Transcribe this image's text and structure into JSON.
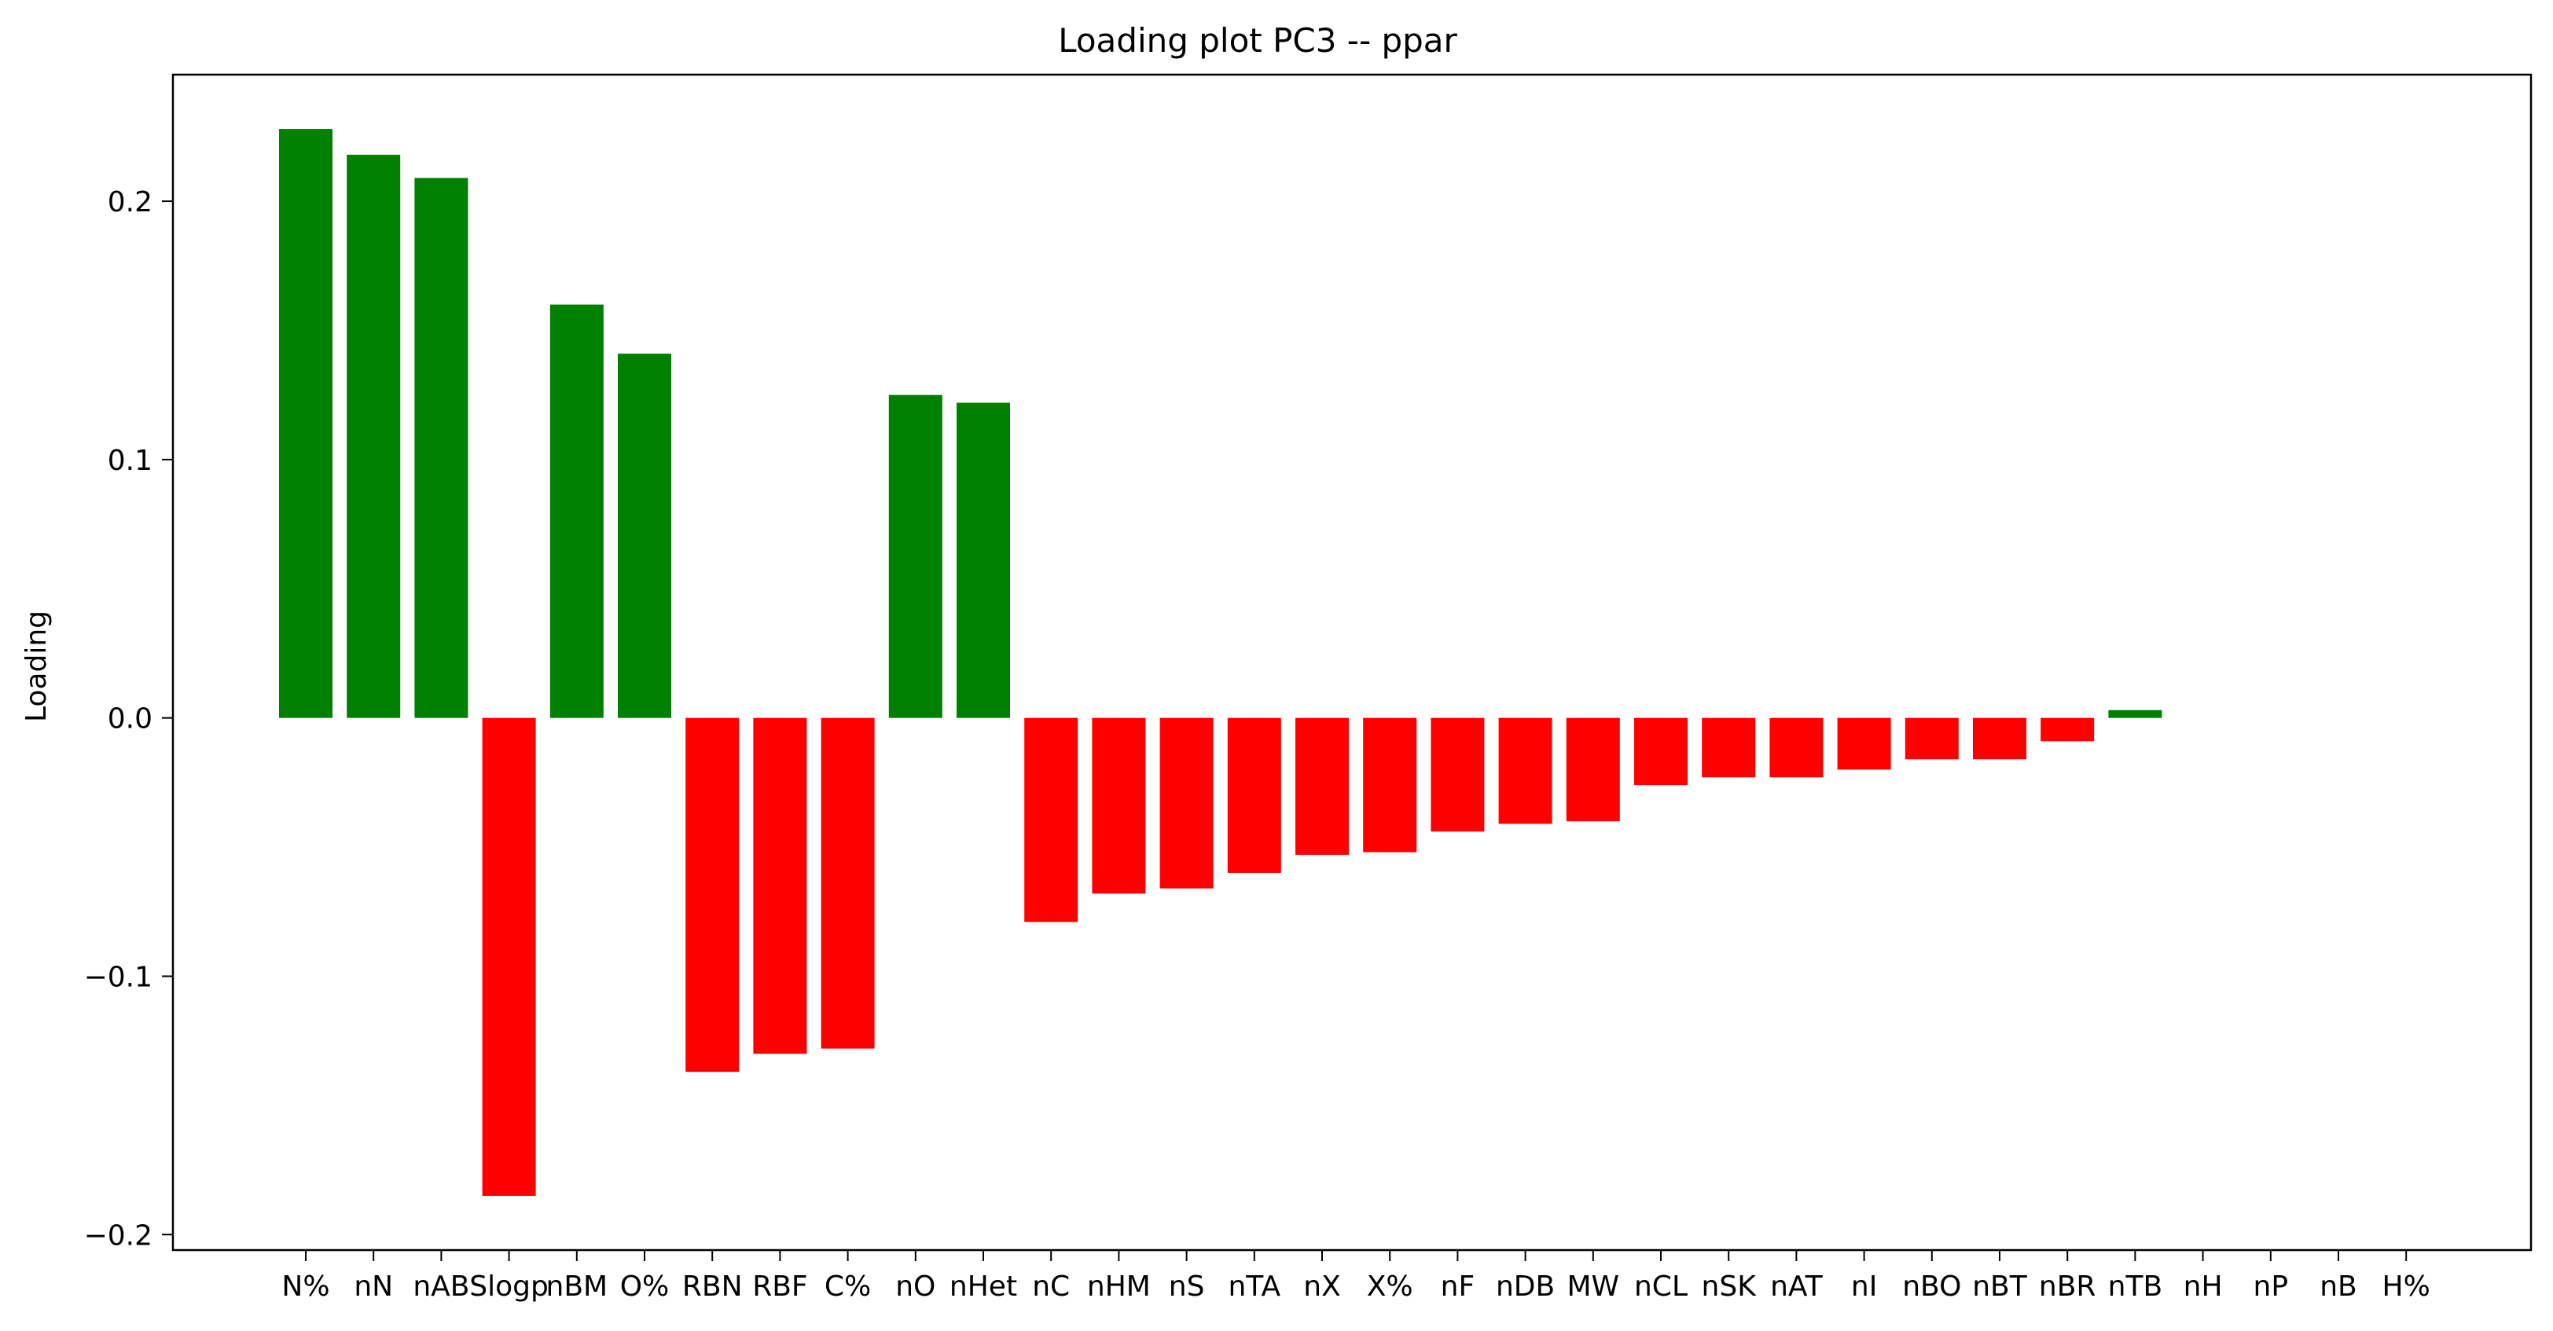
{
  "chart_data": {
    "type": "bar",
    "title": "Loading plot PC3 -- ppar",
    "xlabel": "",
    "ylabel": "Loading",
    "ylim": [
      -0.206,
      0.249
    ],
    "yticks": [
      0.2,
      0.1,
      0.0,
      -0.1,
      -0.2
    ],
    "ytick_labels": [
      "0.2",
      "0.1",
      "0.0",
      "−0.1",
      "−0.2"
    ],
    "grid": false,
    "categories": [
      "N%",
      "nN",
      "nAB",
      "Slogp",
      "nBM",
      "O%",
      "RBN",
      "RBF",
      "C%",
      "nO",
      "nHet",
      "nC",
      "nHM",
      "nS",
      "nTA",
      "nX",
      "X%",
      "nF",
      "nDB",
      "MW",
      "nCL",
      "nSK",
      "nAT",
      "nI",
      "nBO",
      "nBT",
      "nBR",
      "nTB",
      "nH",
      "nP",
      "nB",
      "H%"
    ],
    "values": [
      0.228,
      0.218,
      0.209,
      -0.185,
      0.16,
      0.141,
      -0.137,
      -0.13,
      -0.128,
      0.125,
      0.122,
      -0.079,
      -0.068,
      -0.066,
      -0.06,
      -0.053,
      -0.052,
      -0.044,
      -0.041,
      -0.04,
      -0.026,
      -0.023,
      -0.023,
      -0.02,
      -0.016,
      -0.016,
      -0.009,
      0.003,
      0.0,
      0.0,
      0.0,
      0.0
    ],
    "colors": {
      "positive": "#008000",
      "negative": "#ff0000"
    }
  }
}
